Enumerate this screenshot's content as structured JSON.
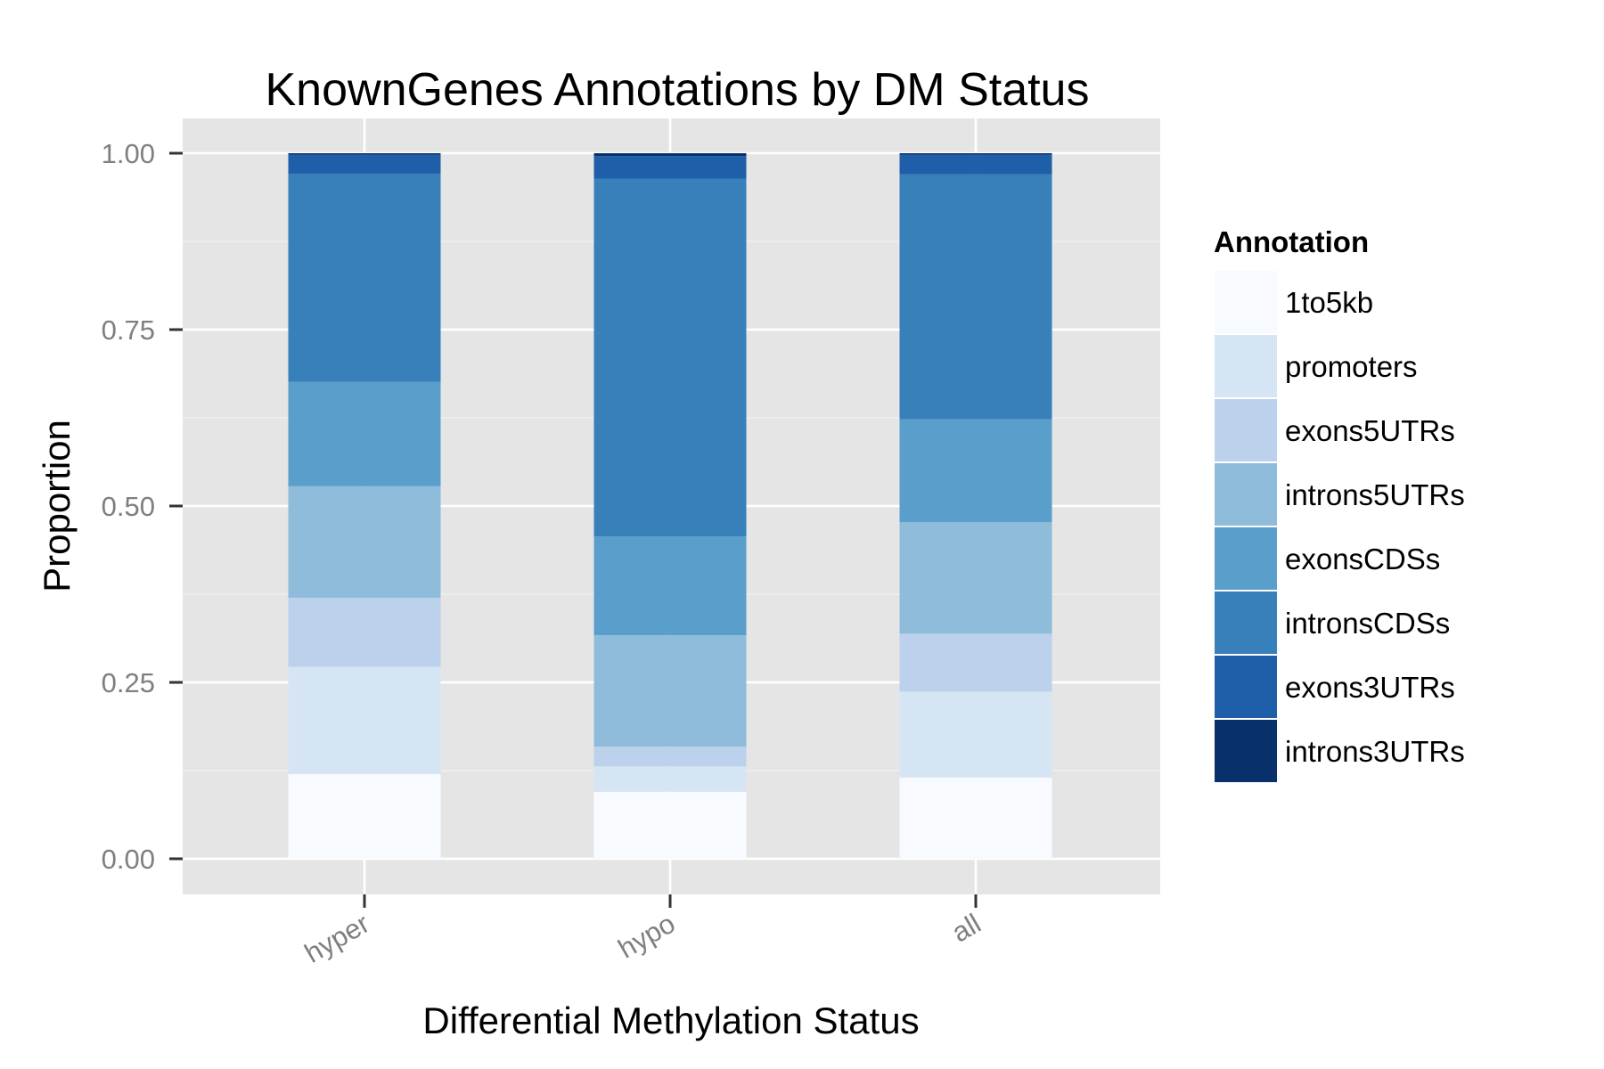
{
  "chart_data": {
    "type": "bar",
    "stacked": true,
    "title": "KnownGenes Annotations by DM Status",
    "xlabel": "Differential Methylation Status",
    "ylabel": "Proportion",
    "categories": [
      "hyper",
      "hypo",
      "all"
    ],
    "y_ticks": [
      "0.00",
      "0.25",
      "0.50",
      "0.75",
      "1.00"
    ],
    "ylim": [
      -0.05,
      1.05
    ],
    "grid": true,
    "legend": {
      "title": "Annotation",
      "position": "right"
    },
    "series": [
      {
        "name": "1to5kb",
        "color": "#f7fbff",
        "values": [
          0.12,
          0.095,
          0.115
        ]
      },
      {
        "name": "promoters",
        "color": "#d6e5f4",
        "values": [
          0.152,
          0.036,
          0.122
        ]
      },
      {
        "name": "exons5UTRs",
        "color": "#bcd1eb",
        "values": [
          0.098,
          0.028,
          0.082
        ]
      },
      {
        "name": "introns5UTRs",
        "color": "#8fbcdb",
        "values": [
          0.158,
          0.158,
          0.158
        ]
      },
      {
        "name": "exonsCDSs",
        "color": "#5a9ecb",
        "values": [
          0.148,
          0.14,
          0.146
        ]
      },
      {
        "name": "intronsCDSs",
        "color": "#3880ba",
        "values": [
          0.295,
          0.507,
          0.347
        ]
      },
      {
        "name": "exons3UTRs",
        "color": "#1f5ea8",
        "values": [
          0.027,
          0.032,
          0.028
        ]
      },
      {
        "name": "introns3UTRs",
        "color": "#08306b",
        "values": [
          0.002,
          0.004,
          0.002
        ]
      }
    ]
  }
}
